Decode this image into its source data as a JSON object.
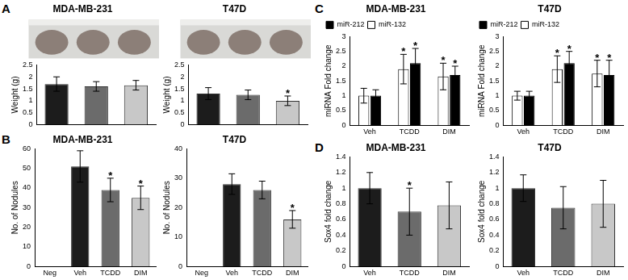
{
  "panel_labels": [
    "A",
    "B",
    "C",
    "D"
  ],
  "chart_data": [
    {
      "type": "bar",
      "title": "MDA-MB-231",
      "categories": [
        null,
        null,
        null
      ],
      "values": [
        1.7,
        1.6,
        1.65
      ],
      "errors": [
        0.3,
        0.2,
        0.2
      ],
      "colors": [
        "#1c1c1c",
        "#6b6b6b",
        "#c8c8c8"
      ],
      "ylabel": "Weight (g)",
      "ylim": [
        0,
        2.5
      ],
      "yticks": [
        0,
        0.5,
        1,
        1.5,
        2,
        2.5
      ],
      "grid": false,
      "tick_labels": "y"
    },
    {
      "type": "bar",
      "title": "T47D",
      "categories": [
        null,
        null,
        null
      ],
      "values": [
        1.3,
        1.25,
        1.0
      ],
      "errors": [
        0.25,
        0.2,
        0.2
      ],
      "colors": [
        "#1c1c1c",
        "#6b6b6b",
        "#c8c8c8"
      ],
      "ylabel": "Weight (g)",
      "ylim": [
        0,
        2.5
      ],
      "yticks": [
        0,
        0.5,
        1,
        1.5,
        2,
        2.5
      ],
      "grid": false,
      "tick_labels": "y",
      "annotations": [
        {
          "index": 2,
          "text": "*"
        }
      ]
    },
    {
      "type": "bar",
      "title": "MDA-MB-231",
      "categories": [
        "Neg",
        "Veh",
        "TCDD",
        "DIM"
      ],
      "values": [
        0,
        51,
        39,
        35
      ],
      "errors": [
        0,
        8,
        6,
        6
      ],
      "colors": [
        "#1c1c1c",
        "#1c1c1c",
        "#6b6b6b",
        "#c8c8c8"
      ],
      "ylabel": "No. of Nodules",
      "ylim": [
        0,
        60
      ],
      "yticks": [
        0,
        10,
        20,
        30,
        40,
        50,
        60
      ],
      "grid": false,
      "annotations": [
        {
          "index": 2,
          "text": "*"
        },
        {
          "index": 3,
          "text": "*"
        }
      ]
    },
    {
      "type": "bar",
      "title": "T47D",
      "categories": [
        "Neg",
        "Veh",
        "TCDD",
        "DIM"
      ],
      "values": [
        0,
        28,
        26,
        16
      ],
      "errors": [
        0,
        3.5,
        3,
        3
      ],
      "colors": [
        "#1c1c1c",
        "#1c1c1c",
        "#6b6b6b",
        "#c8c8c8"
      ],
      "ylabel": "No. of Nodules",
      "ylim": [
        0,
        40
      ],
      "yticks": [
        0,
        10,
        20,
        30,
        40
      ],
      "grid": false,
      "annotations": [
        {
          "index": 3,
          "text": "*"
        }
      ]
    },
    {
      "type": "bar",
      "title": "MDA-MB-231",
      "categories": [
        "Veh",
        "TCDD",
        "DIM"
      ],
      "series": [
        {
          "name": "miR-132",
          "color": "#ffffff",
          "values": [
            1.0,
            1.9,
            1.65
          ],
          "errors": [
            0.25,
            0.5,
            0.45
          ]
        },
        {
          "name": "miR-212",
          "color": "#000000",
          "values": [
            1.0,
            2.1,
            1.7
          ],
          "errors": [
            0.2,
            0.5,
            0.3
          ]
        }
      ],
      "ylabel": "miRNA Fold change",
      "ylim": [
        0,
        3
      ],
      "yticks": [
        0,
        0.5,
        1,
        1.5,
        2,
        2.5,
        3
      ],
      "grid": false,
      "legend": "upper left",
      "annotations": [
        {
          "index": 1,
          "series": "miR-132",
          "text": "*"
        },
        {
          "index": 1,
          "series": "miR-212",
          "text": "*"
        },
        {
          "index": 2,
          "series": "miR-132",
          "text": "*"
        },
        {
          "index": 2,
          "series": "miR-212",
          "text": "*"
        }
      ]
    },
    {
      "type": "bar",
      "title": "T47D",
      "categories": [
        "Veh",
        "TCDD",
        "DIM"
      ],
      "series": [
        {
          "name": "miR-132",
          "color": "#ffffff",
          "values": [
            1.0,
            1.9,
            1.75
          ],
          "errors": [
            0.15,
            0.45,
            0.45
          ]
        },
        {
          "name": "miR-212",
          "color": "#000000",
          "values": [
            1.0,
            2.1,
            1.7
          ],
          "errors": [
            0.15,
            0.4,
            0.5
          ]
        }
      ],
      "ylabel": "miRNA Fold change",
      "ylim": [
        0,
        3
      ],
      "yticks": [
        0,
        0.5,
        1,
        1.5,
        2,
        2.5,
        3
      ],
      "grid": false,
      "legend": "upper left",
      "annotations": [
        {
          "index": 1,
          "series": "miR-132",
          "text": "*"
        },
        {
          "index": 1,
          "series": "miR-212",
          "text": "*"
        },
        {
          "index": 2,
          "series": "miR-132",
          "text": "*"
        },
        {
          "index": 2,
          "series": "miR-212",
          "text": "*"
        }
      ]
    },
    {
      "type": "bar",
      "title": "MDA-MB-231",
      "categories": [
        "Veh",
        "TCDD",
        "DIM"
      ],
      "values": [
        1.0,
        0.7,
        0.78
      ],
      "errors": [
        0.2,
        0.3,
        0.3
      ],
      "colors": [
        "#1c1c1c",
        "#6b6b6b",
        "#c8c8c8"
      ],
      "ylabel": "Sox4 fold change",
      "ylim": [
        0,
        1.4
      ],
      "yticks": [
        0,
        0.2,
        0.4,
        0.6,
        0.8,
        1,
        1.2,
        1.4
      ],
      "grid": false,
      "annotations": [
        {
          "index": 1,
          "text": "*"
        }
      ]
    },
    {
      "type": "bar",
      "title": "T47D",
      "categories": [
        "Veh",
        "TCDD",
        "DIM"
      ],
      "values": [
        1.0,
        0.75,
        0.8
      ],
      "errors": [
        0.17,
        0.27,
        0.3
      ],
      "colors": [
        "#1c1c1c",
        "#6b6b6b",
        "#c8c8c8"
      ],
      "ylabel": "Sox4 fold change",
      "ylim": [
        0,
        1.4
      ],
      "yticks": [
        0,
        0.2,
        0.4,
        0.6,
        0.8,
        1,
        1.2,
        1.4
      ],
      "grid": false
    }
  ]
}
